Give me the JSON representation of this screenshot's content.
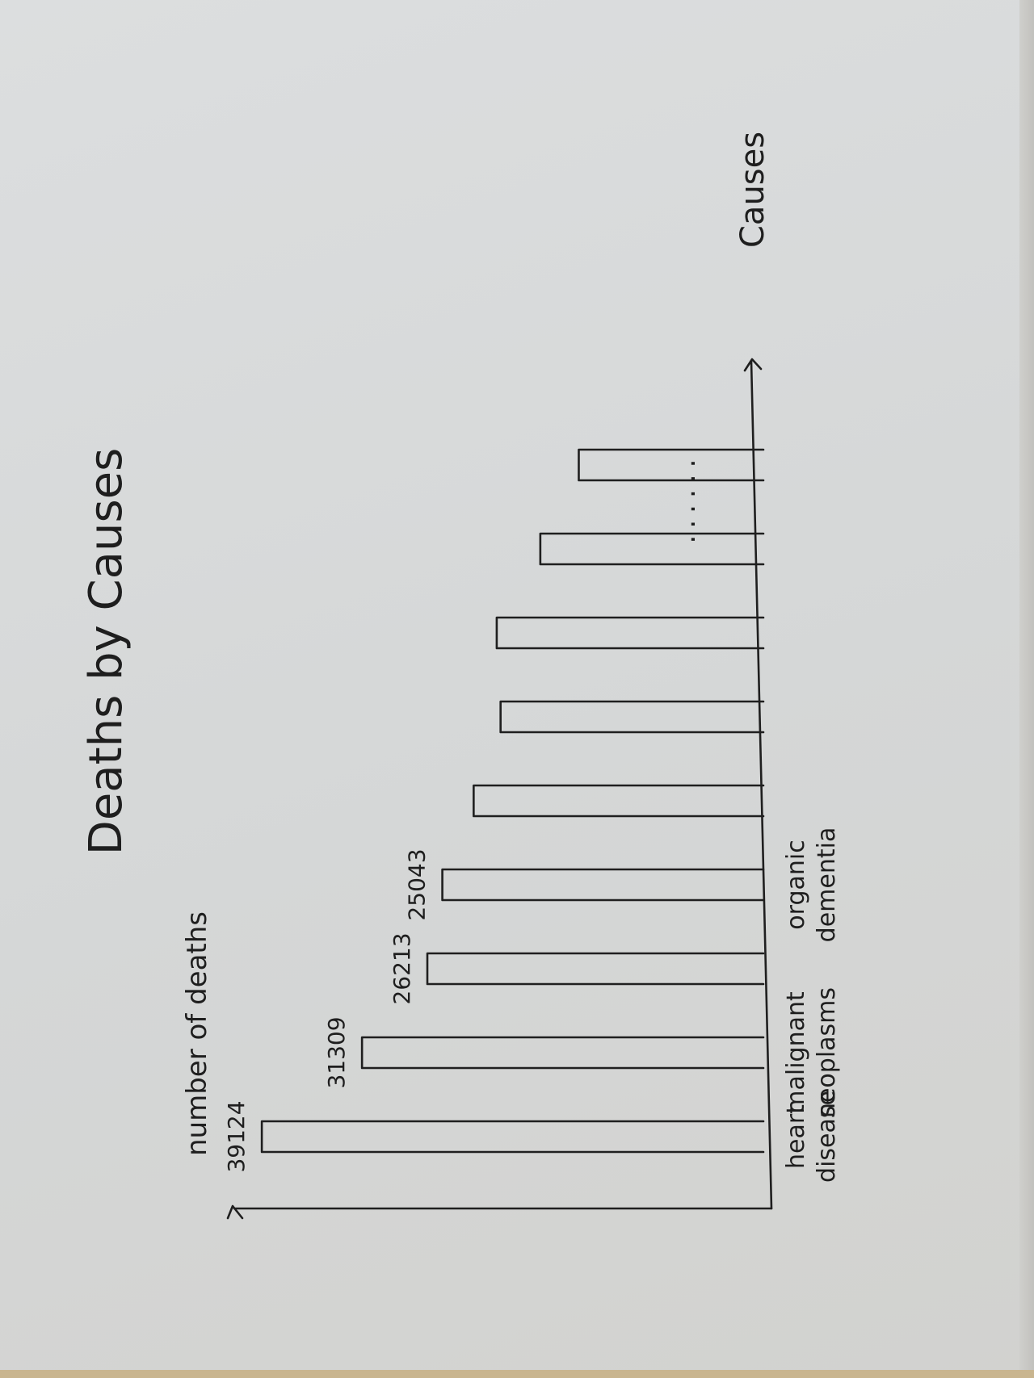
{
  "chart_data": {
    "type": "bar",
    "title": "Deaths by Causes",
    "xlabel": "Causes",
    "ylabel": "number of deaths",
    "categories": [
      "heart disease",
      "malignant neoplasms",
      "",
      "organic dementia",
      "",
      "",
      "",
      "",
      ""
    ],
    "values": [
      39124,
      31309,
      26213,
      25043,
      null,
      null,
      null,
      null,
      null
    ],
    "value_labels": [
      "39124",
      "31309",
      "26213",
      "25043",
      "",
      "",
      "",
      "",
      ""
    ],
    "estimated_values": [
      39124,
      31309,
      26213,
      25043,
      22600,
      20500,
      20800,
      17400,
      14400
    ],
    "continuation_marker": "......",
    "ylim": [
      0,
      46000
    ],
    "orientation": "vertical, page rotated 90 degrees",
    "grid": false,
    "legend": "none",
    "ink_color": "#1f1f1f",
    "paper_color": "#d8dada"
  }
}
